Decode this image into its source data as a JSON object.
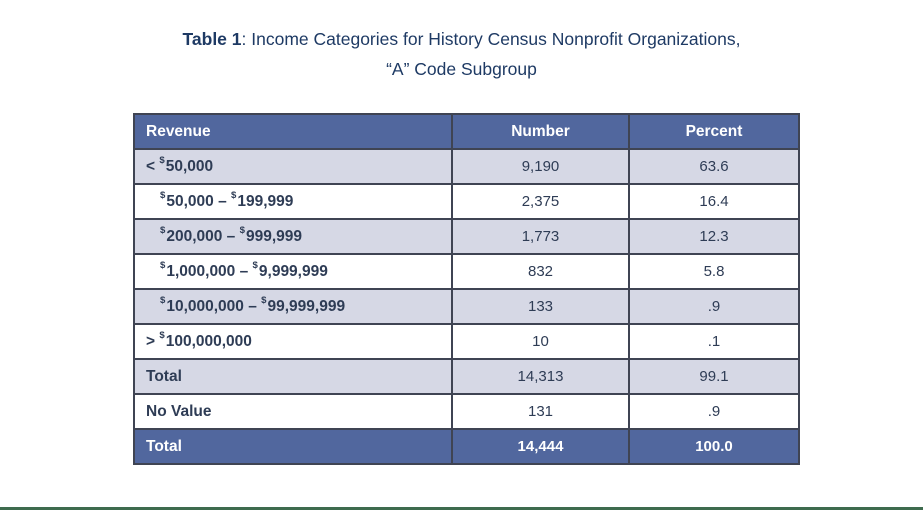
{
  "title": {
    "bold": "Table 1",
    "rest": ": Income Categories for History Census Nonprofit Organizations,",
    "line2": "“A” Code Subgroup"
  },
  "table": {
    "columns": [
      "Revenue",
      "Number",
      "Percent"
    ],
    "rows": [
      {
        "prefix": "<",
        "amounts": [
          "50,000"
        ],
        "indent": false,
        "number": "9,190",
        "percent": "63.6"
      },
      {
        "amounts": [
          "50,000",
          "199,999"
        ],
        "indent": true,
        "number": "2,375",
        "percent": "16.4"
      },
      {
        "amounts": [
          "200,000",
          "999,999"
        ],
        "indent": true,
        "number": "1,773",
        "percent": "12.3"
      },
      {
        "amounts": [
          "1,000,000",
          "9,999,999"
        ],
        "indent": true,
        "number": "832",
        "percent": "5.8"
      },
      {
        "amounts": [
          "10,000,000",
          "99,999,999"
        ],
        "indent": true,
        "number": "133",
        "percent": ".9"
      },
      {
        "prefix": ">",
        "amounts": [
          "100,000,000"
        ],
        "indent": false,
        "number": "10",
        "percent": ".1"
      },
      {
        "label": "Total",
        "number": "14,313",
        "percent": "99.1"
      },
      {
        "label": "No Value",
        "number": "131",
        "percent": ".9"
      },
      {
        "label": "Total",
        "number": "14,444",
        "percent": "100.0",
        "variant": "grand-total"
      }
    ],
    "range_separator": " – ",
    "currency_symbol": "$"
  },
  "colors": {
    "header_blue": "#51679e",
    "row_alt_lavender": "#d6d8e5",
    "row_plain": "#ffffff",
    "table_border": "#3f4453",
    "title_navy": "#1e3a64",
    "cell_text_navy": "#2e3c55",
    "bottom_rule_green": "#3e6b4e"
  },
  "chart_data": {
    "type": "table",
    "title": "Table 1: Income Categories for History Census Nonprofit Organizations, “A” Code Subgroup",
    "columns": [
      "Revenue",
      "Number",
      "Percent"
    ],
    "rows": [
      [
        "< $50,000",
        "9,190",
        "63.6"
      ],
      [
        "$50,000 – $199,999",
        "2,375",
        "16.4"
      ],
      [
        "$200,000 – $999,999",
        "1,773",
        "12.3"
      ],
      [
        "$1,000,000 – $9,999,999",
        "832",
        "5.8"
      ],
      [
        "$10,000,000 – $99,999,999",
        "133",
        ".9"
      ],
      [
        "> $100,000,000",
        "10",
        ".1"
      ],
      [
        "Total",
        "14,313",
        "99.1"
      ],
      [
        "No Value",
        "131",
        ".9"
      ],
      [
        "Total",
        "14,444",
        "100.0"
      ]
    ]
  }
}
